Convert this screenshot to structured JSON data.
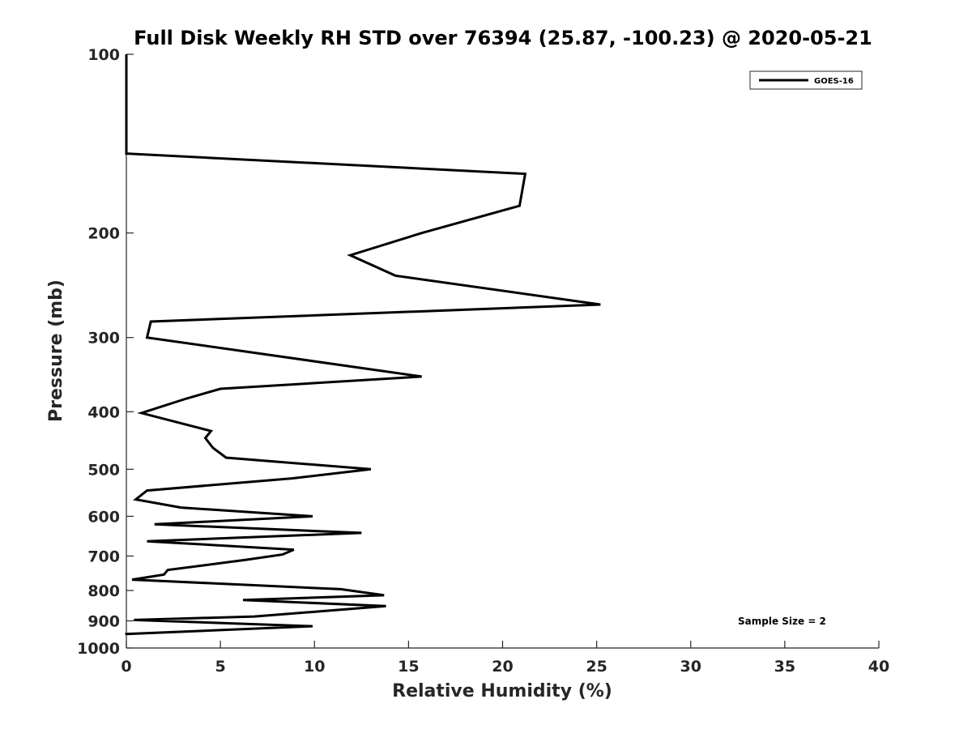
{
  "chart_data": {
    "type": "line",
    "title": "Full Disk Weekly RH STD over 76394 (25.87, -100.23) @ 2020-05-21",
    "xlabel": "Relative Humidity (%)",
    "ylabel": "Pressure (mb)",
    "xlim": [
      0,
      40
    ],
    "ylim": [
      100,
      1000
    ],
    "y_scale": "log",
    "y_reversed": true,
    "grid": false,
    "legend_position": "top-right",
    "x_ticks": [
      0,
      5,
      10,
      15,
      20,
      25,
      30,
      35,
      40
    ],
    "y_ticks": [
      100,
      200,
      300,
      400,
      500,
      600,
      700,
      800,
      900,
      1000
    ],
    "annotation": "Sample Size = 2",
    "series": [
      {
        "name": "GOES-16",
        "color": "#000000",
        "points": [
          [
            0,
            100
          ],
          [
            0,
            117
          ],
          [
            0,
            147
          ],
          [
            21.2,
            159
          ],
          [
            20.9,
            180
          ],
          [
            15.7,
            200
          ],
          [
            11.9,
            218
          ],
          [
            14.3,
            236
          ],
          [
            25.2,
            264
          ],
          [
            1.3,
            282
          ],
          [
            1.1,
            300
          ],
          [
            15.7,
            349
          ],
          [
            5.0,
            366
          ],
          [
            3.2,
            380
          ],
          [
            0.8,
            402
          ],
          [
            4.5,
            431
          ],
          [
            4.2,
            443
          ],
          [
            4.6,
            460
          ],
          [
            5.3,
            478
          ],
          [
            13.0,
            500
          ],
          [
            8.8,
            518
          ],
          [
            1.1,
            543
          ],
          [
            0.5,
            562
          ],
          [
            2.9,
            580
          ],
          [
            9.9,
            600
          ],
          [
            1.5,
            619
          ],
          [
            12.5,
            640
          ],
          [
            1.1,
            661
          ],
          [
            8.9,
            683
          ],
          [
            8.3,
            696
          ],
          [
            6.4,
            710
          ],
          [
            2.2,
            739
          ],
          [
            2.0,
            752
          ],
          [
            0.3,
            767
          ],
          [
            11.4,
            796
          ],
          [
            13.7,
            815
          ],
          [
            6.2,
            830
          ],
          [
            13.8,
            850
          ],
          [
            6.8,
            885
          ],
          [
            0.4,
            897
          ],
          [
            9.9,
            919
          ],
          [
            0,
            947
          ],
          [
            0,
            950
          ]
        ]
      }
    ]
  }
}
